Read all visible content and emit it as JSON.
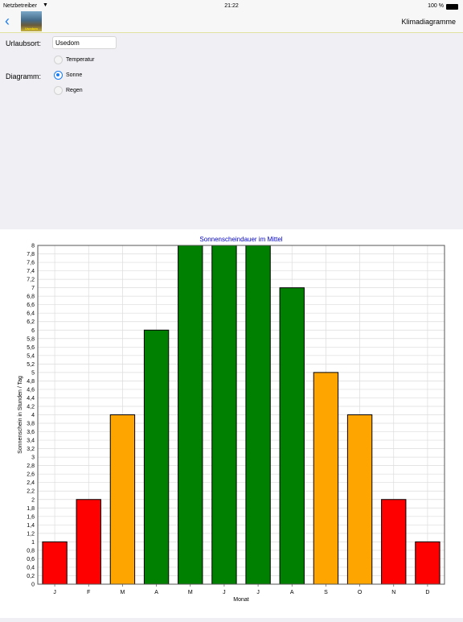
{
  "status": {
    "carrier": "Netzbetreiber",
    "time": "21:22",
    "battery": "100 %"
  },
  "nav": {
    "logo_text": "Usedom",
    "title": "Klimadiagramme"
  },
  "form": {
    "location_label": "Urlaubsort:",
    "location_value": "Usedom",
    "diagram_label": "Diagramm:",
    "options": [
      {
        "label": "Temperatur",
        "selected": false
      },
      {
        "label": "Sonne",
        "selected": true
      },
      {
        "label": "Regen",
        "selected": false
      }
    ]
  },
  "chart_data": {
    "type": "bar",
    "title": "Sonnenscheindauer im Mittel",
    "xlabel": "Monat",
    "ylabel": "Sonnenschein in Stunden / Tag",
    "ylim": [
      0,
      8
    ],
    "ytick_step": 0.2,
    "categories": [
      "J",
      "F",
      "M",
      "A",
      "M",
      "J",
      "J",
      "A",
      "S",
      "O",
      "N",
      "D"
    ],
    "values": [
      1,
      2,
      4,
      6,
      8,
      8,
      8,
      7,
      5,
      4,
      2,
      1
    ],
    "colors": [
      "#ff0000",
      "#ff0000",
      "#ffa500",
      "#008000",
      "#008000",
      "#008000",
      "#008000",
      "#008000",
      "#ffa500",
      "#ffa500",
      "#ff0000",
      "#ff0000"
    ],
    "grid": true,
    "title_color": "#0000cc"
  }
}
